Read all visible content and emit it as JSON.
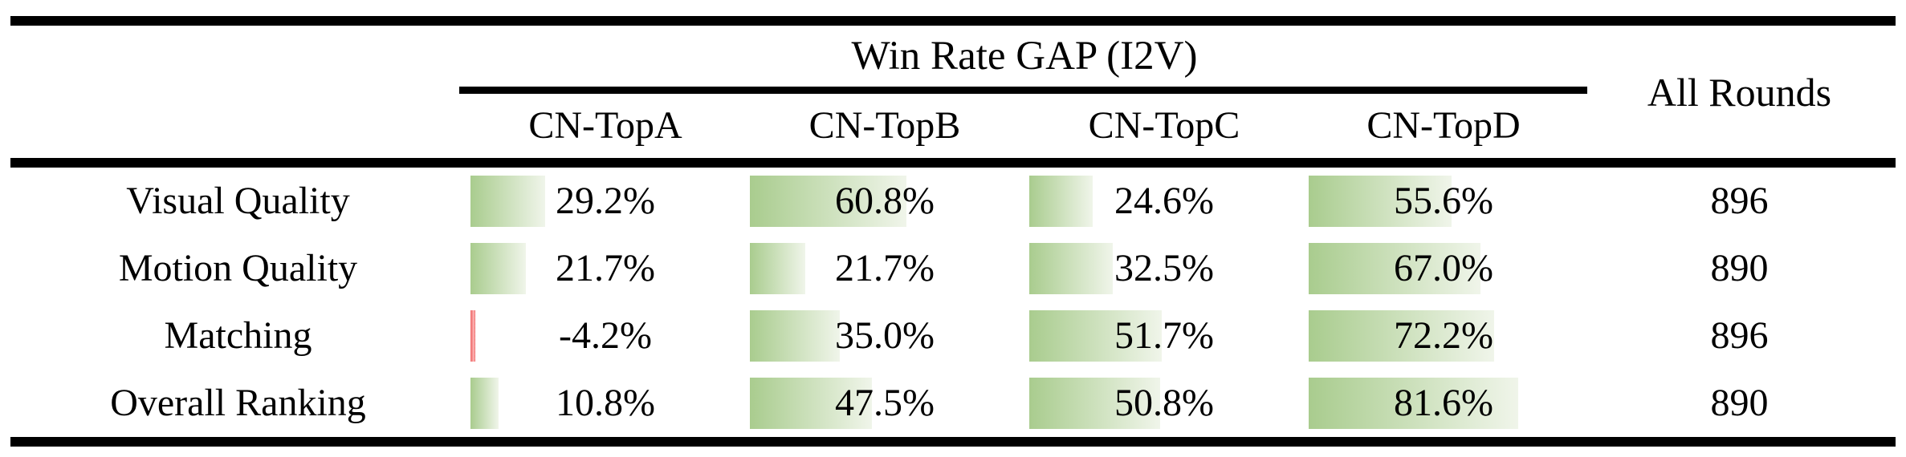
{
  "table": {
    "group_header": "Win Rate GAP (I2V)",
    "all_rounds_header": "All Rounds",
    "columns": [
      "CN-TopA",
      "CN-TopB",
      "CN-TopC",
      "CN-TopD"
    ],
    "rows": [
      {
        "label": "Visual Quality",
        "cells": [
          {
            "value": "29.2%",
            "bar_pct": 29.2
          },
          {
            "value": "60.8%",
            "bar_pct": 60.8
          },
          {
            "value": "24.6%",
            "bar_pct": 24.6
          },
          {
            "value": "55.6%",
            "bar_pct": 55.6
          }
        ],
        "rounds": "896"
      },
      {
        "label": "Motion Quality",
        "cells": [
          {
            "value": "21.7%",
            "bar_pct": 21.7
          },
          {
            "value": "21.7%",
            "bar_pct": 21.7
          },
          {
            "value": "32.5%",
            "bar_pct": 32.5
          },
          {
            "value": "67.0%",
            "bar_pct": 67.0
          }
        ],
        "rounds": "890"
      },
      {
        "label": "Matching",
        "cells": [
          {
            "value": "-4.2%",
            "bar_pct": 1.6,
            "negative": true
          },
          {
            "value": "35.0%",
            "bar_pct": 35.0
          },
          {
            "value": "51.7%",
            "bar_pct": 51.7
          },
          {
            "value": "72.2%",
            "bar_pct": 72.2
          }
        ],
        "rounds": "896"
      },
      {
        "label": "Overall Ranking",
        "cells": [
          {
            "value": "10.8%",
            "bar_pct": 10.8
          },
          {
            "value": "47.5%",
            "bar_pct": 47.5
          },
          {
            "value": "50.8%",
            "bar_pct": 50.8
          },
          {
            "value": "81.6%",
            "bar_pct": 81.6
          }
        ],
        "rounds": "890"
      }
    ],
    "colors": {
      "bar_green_start": "#a9cc8e",
      "bar_green_end": "#f0f5ea",
      "bar_red_start": "#ee6b6b",
      "bar_red_end": "#ffbdbd",
      "rule": "#000000",
      "text": "#000000"
    }
  }
}
